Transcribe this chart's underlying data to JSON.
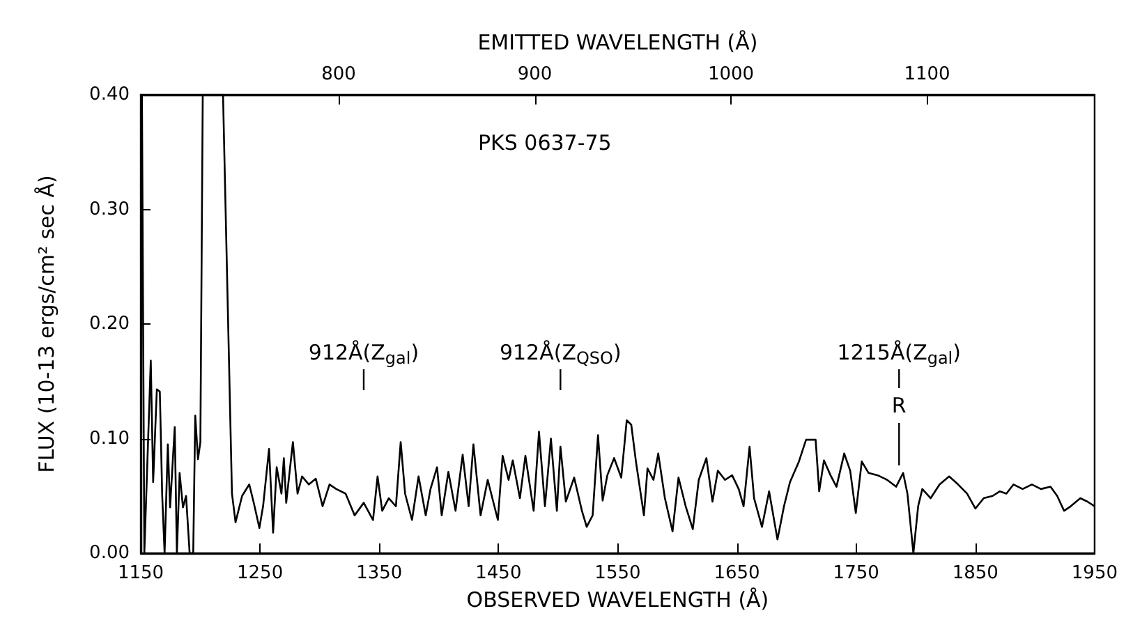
{
  "chart_data": {
    "type": "line",
    "title": "PKS 0637-75",
    "xlabel": "OBSERVED WAVELENGTH (Å)",
    "x2label": "EMITTED WAVELENGTH (Å)",
    "ylabel": "FLUX (10-13 ergs/cm² sec Å)",
    "xlim": [
      1150,
      1950
    ],
    "xticks": [
      1150,
      1250,
      1350,
      1450,
      1550,
      1650,
      1750,
      1850,
      1950
    ],
    "x2lim": [
      699.1,
      1185.4
    ],
    "x2ticks": [
      800,
      900,
      1000,
      1100
    ],
    "ylim": [
      0,
      0.4
    ],
    "yticks": [
      {
        "value": 0,
        "label": "0.00"
      },
      {
        "value": 0.1,
        "label": "0.10"
      },
      {
        "value": 0.2,
        "label": "0.20"
      },
      {
        "value": 0.3,
        "label": "0.30"
      },
      {
        "value": 0.4,
        "label": "0.40"
      }
    ],
    "grid": false,
    "ref_lines": [
      {
        "axis": "x",
        "value": 1337,
        "label": "912Å(Z$_{gal}$)"
      },
      {
        "axis": "x",
        "value": 1502,
        "label": "912Å(Z$_{QSO}$)"
      },
      {
        "axis": "x",
        "value": 1786,
        "label": "1215Å(Z$_{gal}$)"
      }
    ],
    "annotations": [
      "R"
    ],
    "series": [
      {
        "color": "#000000",
        "x": [
          1151,
          1153,
          1158.4,
          1160.4,
          1163.5,
          1166,
          1168,
          1170,
          1172.7,
          1174.6,
          1178.5,
          1180.3,
          1182.6,
          1185.4,
          1188,
          1191,
          1194,
          1195.7,
          1198,
          1200,
          1202,
          1219,
          1226.5,
          1229.5,
          1235,
          1241,
          1245,
          1249.5,
          1252.6,
          1257.6,
          1261,
          1264,
          1268,
          1270,
          1272,
          1277.6,
          1281.5,
          1285.3,
          1291,
          1296.8,
          1302.5,
          1308.3,
          1314,
          1321.8,
          1329.4,
          1337,
          1344.8,
          1348.6,
          1352.5,
          1358,
          1364,
          1368,
          1371.7,
          1377.5,
          1383,
          1389,
          1393,
          1398.5,
          1402.4,
          1408,
          1414,
          1420,
          1425,
          1429,
          1435,
          1441,
          1449.5,
          1453.5,
          1458.5,
          1462,
          1468,
          1472.6,
          1479.5,
          1484,
          1489,
          1494,
          1499,
          1502,
          1506.5,
          1513.5,
          1520,
          1524,
          1529,
          1533.5,
          1537.4,
          1541.3,
          1547,
          1553,
          1557.6,
          1561.4,
          1565.3,
          1572,
          1575,
          1580,
          1584,
          1589.6,
          1596,
          1601,
          1607,
          1613,
          1618,
          1624.4,
          1629.5,
          1634,
          1640,
          1646,
          1651.5,
          1655.6,
          1660.6,
          1664.4,
          1671,
          1677,
          1684,
          1689.5,
          1694.5,
          1702,
          1708,
          1716,
          1719,
          1723,
          1728.5,
          1733.5,
          1740,
          1745,
          1749.7,
          1754.7,
          1760.4,
          1768,
          1776,
          1783.5,
          1789.4,
          1793,
          1798,
          1802,
          1805.5,
          1812.5,
          1820,
          1828,
          1835.5,
          1843,
          1850,
          1857,
          1864.5,
          1870.5,
          1876,
          1882,
          1889.6,
          1897.4,
          1905,
          1913,
          1918.6,
          1924.4,
          1930,
          1938,
          1944,
          1950
        ],
        "values": [
          0.4,
          0,
          0.168,
          0.062,
          0.143,
          0.141,
          0.05,
          0,
          0.095,
          0.04,
          0.11,
          0,
          0.07,
          0.04,
          0.05,
          0,
          0,
          0.12,
          0.082,
          0.097,
          0.4,
          0.4,
          0.052,
          0.027,
          0.05,
          0.06,
          0.043,
          0.022,
          0.041,
          0.091,
          0.018,
          0.075,
          0.052,
          0.083,
          0.044,
          0.097,
          0.052,
          0.067,
          0.06,
          0.065,
          0.041,
          0.06,
          0.056,
          0.052,
          0.033,
          0.044,
          0.029,
          0.067,
          0.037,
          0.048,
          0.041,
          0.097,
          0.052,
          0.029,
          0.067,
          0.033,
          0.056,
          0.075,
          0.033,
          0.071,
          0.037,
          0.086,
          0.041,
          0.095,
          0.033,
          0.064,
          0.029,
          0.085,
          0.064,
          0.081,
          0.048,
          0.085,
          0.037,
          0.106,
          0.041,
          0.1,
          0.037,
          0.093,
          0.045,
          0.066,
          0.037,
          0.023,
          0.033,
          0.103,
          0.046,
          0.068,
          0.083,
          0.066,
          0.116,
          0.112,
          0.08,
          0.033,
          0.074,
          0.064,
          0.087,
          0.048,
          0.019,
          0.066,
          0.041,
          0.021,
          0.064,
          0.083,
          0.045,
          0.072,
          0.064,
          0.068,
          0.056,
          0.041,
          0.093,
          0.048,
          0.023,
          0.054,
          0.012,
          0.041,
          0.062,
          0.08,
          0.099,
          0.099,
          0.054,
          0.081,
          0.068,
          0.058,
          0.087,
          0.072,
          0.035,
          0.08,
          0.07,
          0.068,
          0.064,
          0.058,
          0.07,
          0.052,
          0,
          0.041,
          0.056,
          0.048,
          0.06,
          0.067,
          0.06,
          0.052,
          0.039,
          0.048,
          0.05,
          0.054,
          0.052,
          0.06,
          0.056,
          0.06,
          0.056,
          0.058,
          0.05,
          0.037,
          0.041,
          0.048,
          0.045,
          0.041
        ]
      }
    ]
  }
}
